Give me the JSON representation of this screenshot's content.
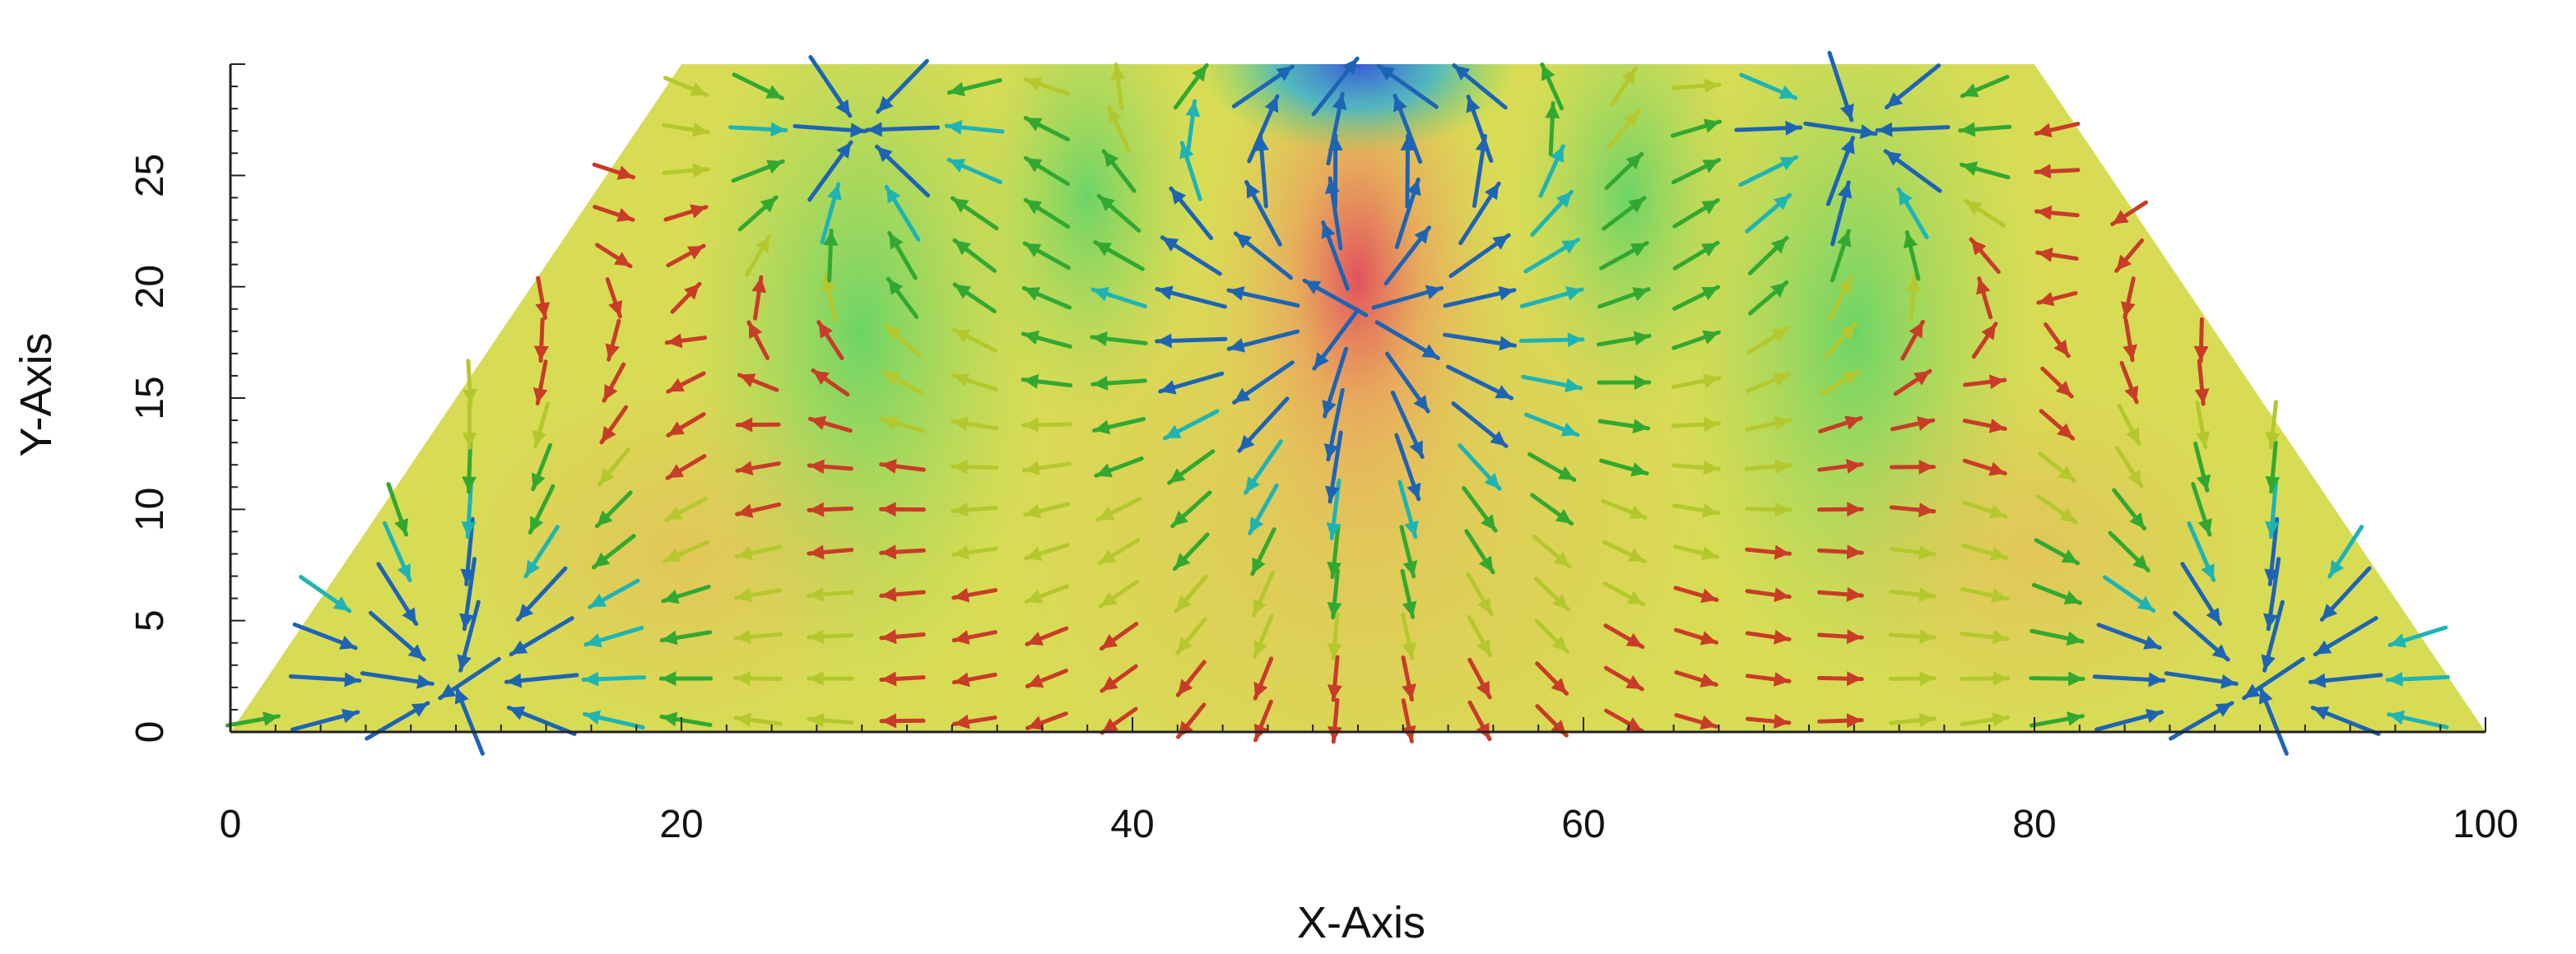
{
  "chart_data": {
    "type": "vector-field",
    "xlabel": "X-Axis",
    "ylabel": "Y-Axis",
    "xlim": [
      0,
      100
    ],
    "ylim": [
      0,
      30
    ],
    "x_ticks": [
      0,
      20,
      40,
      60,
      80,
      100
    ],
    "y_ticks": [
      0,
      5,
      10,
      15,
      20,
      25
    ],
    "x_tick_labels": [
      "0",
      "20",
      "40",
      "60",
      "80",
      "100"
    ],
    "y_tick_labels": [
      "0",
      "5",
      "10",
      "15",
      "20",
      "25"
    ],
    "domain_polygon": [
      [
        0,
        0
      ],
      [
        100,
        0
      ],
      [
        80,
        30
      ],
      [
        20,
        30
      ]
    ],
    "scalar_field_colors": [
      "#3a5bd9",
      "#31b3d6",
      "#59d36a",
      "#a6d75a",
      "#d8dc55",
      "#e9b45c",
      "#e0505a"
    ],
    "arrow_colors": {
      "strong": "#1e64b4",
      "medium": "#1eb4b4",
      "field": "#32a832",
      "weak": "#b4c82d",
      "outer": "#c83c28"
    },
    "grid": false,
    "legend": "none"
  }
}
